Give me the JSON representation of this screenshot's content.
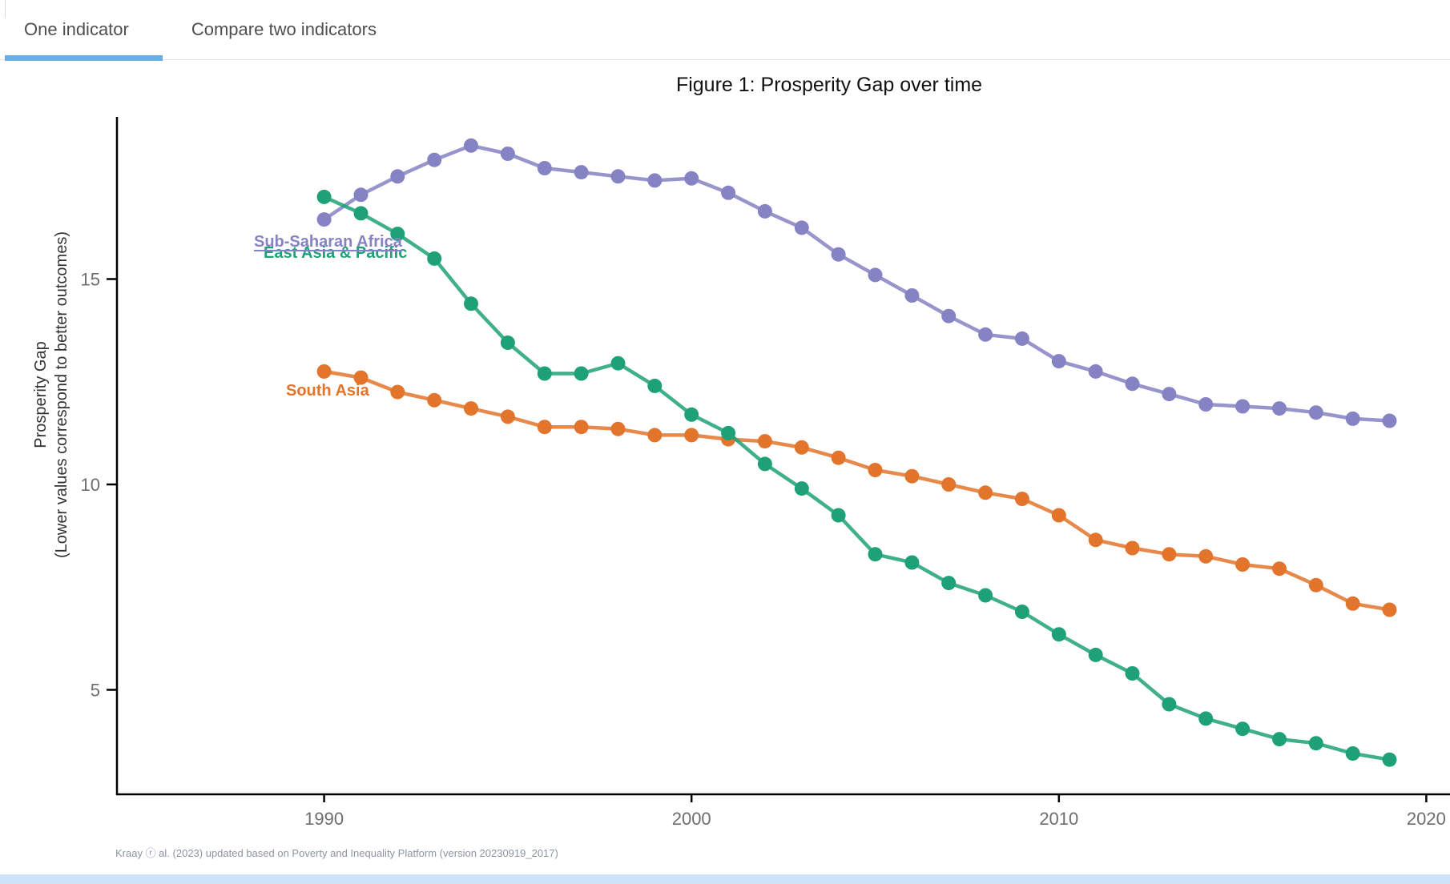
{
  "tabs": [
    {
      "label": "One indicator",
      "active": true
    },
    {
      "label": "Compare two indicators",
      "active": false
    }
  ],
  "figure": {
    "title": "Figure 1: Prosperity Gap over time"
  },
  "y_axis": {
    "label_line1": "Prosperity Gap",
    "label_line2": "(Lower values correspond to better outcomes)",
    "ticks": [
      15,
      10,
      5
    ]
  },
  "x_axis": {
    "ticks": [
      1990,
      2000,
      2010,
      2020
    ]
  },
  "footer": {
    "citation": "Kraay ⓡ al. (2023) updated based on Poverty and Inequality Platform (version 20230919_2017)"
  },
  "colors": {
    "active_tab_underline": "#68b0e3",
    "axis": "#000000",
    "tick_label": "#6e6e6e",
    "title_text": "#111111",
    "tab_text": "#4f4f4f",
    "footer_text": "#8a95a1",
    "bottom_strip": "#cfe3f6"
  },
  "chart_data": {
    "type": "line",
    "title": "Figure 1: Prosperity Gap over time",
    "xlabel": "",
    "ylabel": "Prosperity Gap (Lower values correspond to better outcomes)",
    "xlim": [
      1984.4,
      2020.6
    ],
    "ylim": [
      2.5,
      18.95
    ],
    "grid": false,
    "markers": true,
    "legend_position": "inline-labels",
    "x": [
      1990,
      1991,
      1992,
      1993,
      1994,
      1995,
      1996,
      1997,
      1998,
      1999,
      2000,
      2001,
      2002,
      2003,
      2004,
      2005,
      2006,
      2007,
      2008,
      2009,
      2010,
      2011,
      2012,
      2013,
      2014,
      2015,
      2016,
      2017,
      2018,
      2019
    ],
    "series": [
      {
        "name": "Sub-Saharan Africa",
        "color": "#8583c3",
        "values": [
          16.45,
          17.05,
          17.5,
          17.9,
          18.25,
          18.05,
          17.7,
          17.6,
          17.5,
          17.4,
          17.45,
          17.1,
          16.65,
          16.25,
          15.6,
          15.1,
          14.6,
          14.1,
          13.65,
          13.55,
          13.0,
          12.75,
          12.45,
          12.2,
          11.95,
          11.9,
          11.85,
          11.75,
          11.6,
          11.55
        ]
      },
      {
        "name": "South Asia",
        "color": "#e3742b",
        "values": [
          12.75,
          12.6,
          12.25,
          12.05,
          11.85,
          11.65,
          11.4,
          11.4,
          11.35,
          11.2,
          11.2,
          11.1,
          11.05,
          10.9,
          10.65,
          10.35,
          10.2,
          10.0,
          9.8,
          9.65,
          9.25,
          8.65,
          8.45,
          8.3,
          8.25,
          8.05,
          7.95,
          7.55,
          7.1,
          6.95
        ]
      },
      {
        "name": "East Asia & Pacific",
        "color": "#1fa178",
        "values": [
          17.0,
          16.6,
          16.1,
          15.5,
          14.4,
          13.45,
          12.7,
          12.7,
          12.95,
          12.4,
          11.7,
          11.25,
          10.5,
          9.9,
          9.25,
          8.3,
          8.1,
          7.6,
          7.3,
          6.9,
          6.35,
          5.85,
          5.4,
          4.65,
          4.3,
          4.05,
          3.8,
          3.7,
          3.45,
          3.3
        ]
      }
    ]
  }
}
